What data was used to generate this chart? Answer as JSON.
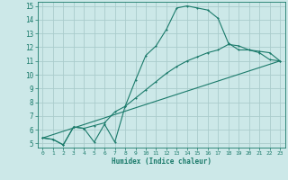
{
  "xlabel": "Humidex (Indice chaleur)",
  "xlim": [
    -0.5,
    23.5
  ],
  "ylim": [
    4.7,
    15.3
  ],
  "xticks": [
    0,
    1,
    2,
    3,
    4,
    5,
    6,
    7,
    8,
    9,
    10,
    11,
    12,
    13,
    14,
    15,
    16,
    17,
    18,
    19,
    20,
    21,
    22,
    23
  ],
  "yticks": [
    5,
    6,
    7,
    8,
    9,
    10,
    11,
    12,
    13,
    14,
    15
  ],
  "background_color": "#cce8e8",
  "grid_color": "#aacccc",
  "line_color": "#1a7a6a",
  "line1_x": [
    0,
    1,
    2,
    3,
    4,
    5,
    6,
    7,
    8,
    9,
    10,
    11,
    12,
    13,
    14,
    15,
    16,
    17,
    18,
    19,
    20,
    21,
    22,
    23
  ],
  "line1_y": [
    5.4,
    5.3,
    4.9,
    6.2,
    6.1,
    5.1,
    6.4,
    5.1,
    7.7,
    9.6,
    11.4,
    12.1,
    13.3,
    14.85,
    15.0,
    14.85,
    14.7,
    14.1,
    12.3,
    11.8,
    11.8,
    11.6,
    11.1,
    11.0
  ],
  "line2_x": [
    0,
    1,
    2,
    3,
    4,
    5,
    6,
    7,
    8,
    9,
    10,
    11,
    12,
    13,
    14,
    15,
    16,
    17,
    18,
    19,
    20,
    21,
    22,
    23
  ],
  "line2_y": [
    5.4,
    5.3,
    4.9,
    6.2,
    6.1,
    6.3,
    6.5,
    7.3,
    7.7,
    8.3,
    8.9,
    9.5,
    10.1,
    10.6,
    11.0,
    11.3,
    11.6,
    11.8,
    12.2,
    12.1,
    11.8,
    11.7,
    11.6,
    11.0
  ],
  "line3_x": [
    0,
    23
  ],
  "line3_y": [
    5.4,
    11.0
  ]
}
